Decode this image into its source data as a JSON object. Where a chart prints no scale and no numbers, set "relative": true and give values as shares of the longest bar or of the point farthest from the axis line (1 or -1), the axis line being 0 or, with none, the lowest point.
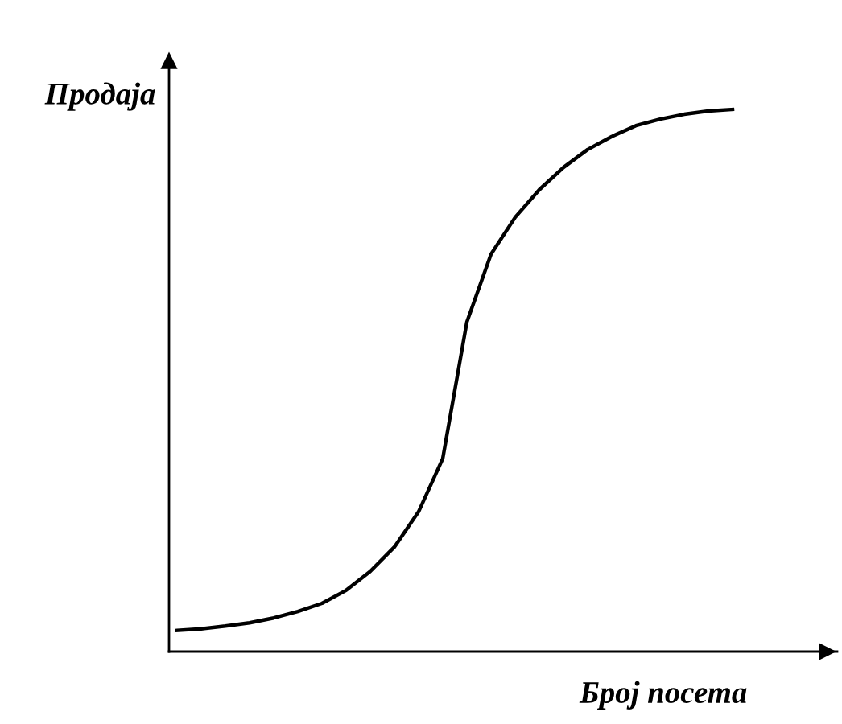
{
  "chart_data": {
    "type": "line",
    "relative": true,
    "xlabel": "Број посета",
    "ylabel": "Продаја",
    "categories": [
      null,
      null,
      null,
      null,
      null,
      null,
      null,
      null,
      null,
      null,
      null,
      null,
      null,
      null,
      null,
      null,
      null,
      null,
      null,
      null,
      null,
      null,
      null,
      null
    ],
    "series": [
      {
        "color": "#000000",
        "values": [
          0.039,
          0.042,
          0.047,
          0.053,
          0.062,
          0.074,
          0.089,
          0.113,
          0.148,
          0.193,
          0.258,
          0.356,
          0.608,
          0.733,
          0.801,
          0.852,
          0.893,
          0.926,
          0.95,
          0.97,
          0.982,
          0.991,
          0.997,
          1
        ]
      }
    ],
    "marker": "none",
    "line_style": "solid"
  }
}
